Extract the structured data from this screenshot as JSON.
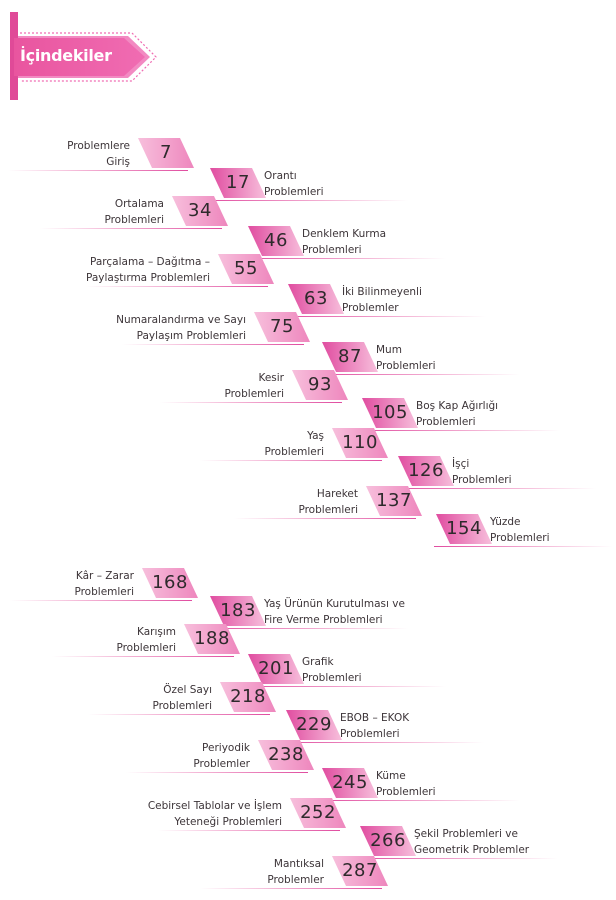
{
  "header": {
    "title": "İçindekiler"
  },
  "colors": {
    "accent": "#e04da0",
    "light": "#f7bfdc",
    "mid": "#ee86bd"
  },
  "entries": [
    {
      "page": "7",
      "lines": [
        "Problemlere",
        "Giriş"
      ]
    },
    {
      "page": "17",
      "lines": [
        "Orantı",
        "Problemleri"
      ]
    },
    {
      "page": "34",
      "lines": [
        "Ortalama",
        "Problemleri"
      ]
    },
    {
      "page": "46",
      "lines": [
        "Denklem Kurma",
        "Problemleri"
      ]
    },
    {
      "page": "55",
      "lines": [
        "Parçalama – Dağıtma –",
        "Paylaştırma Problemleri"
      ]
    },
    {
      "page": "63",
      "lines": [
        "İki Bilinmeyenli",
        "Problemler"
      ]
    },
    {
      "page": "75",
      "lines": [
        "Numaralandırma ve Sayı",
        "Paylaşım Problemleri"
      ]
    },
    {
      "page": "87",
      "lines": [
        "Mum",
        "Problemleri"
      ]
    },
    {
      "page": "93",
      "lines": [
        "Kesir",
        "Problemleri"
      ]
    },
    {
      "page": "105",
      "lines": [
        "Boş Kap Ağırlığı",
        "Problemleri"
      ]
    },
    {
      "page": "110",
      "lines": [
        "Yaş",
        "Problemleri"
      ]
    },
    {
      "page": "126",
      "lines": [
        "İşçi",
        "Problemleri"
      ]
    },
    {
      "page": "137",
      "lines": [
        "Hareket",
        "Problemleri"
      ]
    },
    {
      "page": "154",
      "lines": [
        "Yüzde",
        "Problemleri"
      ]
    },
    {
      "page": "168",
      "lines": [
        "Kâr – Zarar",
        "Problemleri"
      ]
    },
    {
      "page": "183",
      "lines": [
        "Yaş Ürünün Kurutulması ve",
        "Fire Verme Problemleri"
      ]
    },
    {
      "page": "188",
      "lines": [
        "Karışım",
        "Problemleri"
      ]
    },
    {
      "page": "201",
      "lines": [
        "Grafik",
        "Problemleri"
      ]
    },
    {
      "page": "218",
      "lines": [
        "Özel Sayı",
        "Problemleri"
      ]
    },
    {
      "page": "229",
      "lines": [
        "EBOB – EKOK",
        "Problemleri"
      ]
    },
    {
      "page": "238",
      "lines": [
        "Periyodik",
        "Problemler"
      ]
    },
    {
      "page": "245",
      "lines": [
        "Küme",
        "Problemleri"
      ]
    },
    {
      "page": "252",
      "lines": [
        "Cebirsel Tablolar ve İşlem",
        "Yeteneği Problemleri"
      ]
    },
    {
      "page": "266",
      "lines": [
        "Şekil Problemleri ve",
        "Geometrik Problemler"
      ]
    },
    {
      "page": "287",
      "lines": [
        "Mantıksal",
        "Problemler"
      ]
    }
  ]
}
